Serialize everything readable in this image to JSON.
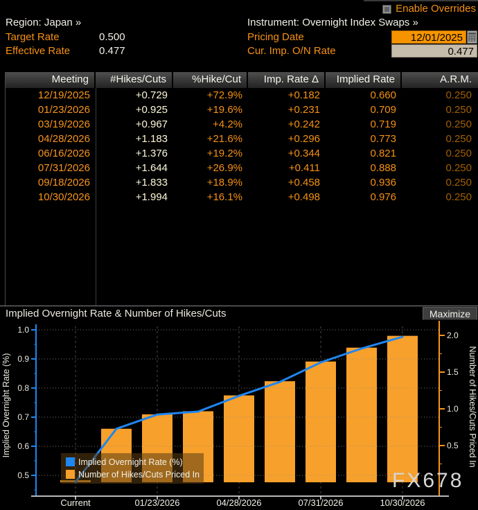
{
  "header": {
    "enable_overrides_label": "Enable Overrides",
    "region_label": "Region:",
    "region_value": "Japan »",
    "instrument_label": "Instrument:",
    "instrument_value": "Overnight Index Swaps »",
    "target_rate_label": "Target Rate",
    "target_rate_value": "0.500",
    "effective_rate_label": "Effective Rate",
    "effective_rate_value": "0.477",
    "pricing_date_label": "Pricing Date",
    "pricing_date_value": "12/01/2025",
    "calendar_icon": "calendar-icon",
    "cur_imp_rate_label": "Cur. Imp. O/N Rate",
    "cur_imp_rate_value": "0.477"
  },
  "table": {
    "columns": [
      "Meeting",
      "#Hikes/Cuts",
      "%Hike/Cut",
      "Imp. Rate Δ",
      "Implied Rate",
      "A.R.M."
    ],
    "rows": [
      [
        "12/19/2025",
        "+0.729",
        "+72.9%",
        "+0.182",
        "0.660",
        "0.250"
      ],
      [
        "01/23/2026",
        "+0.925",
        "+19.6%",
        "+0.231",
        "0.709",
        "0.250"
      ],
      [
        "03/19/2026",
        "+0.967",
        "+4.2%",
        "+0.242",
        "0.719",
        "0.250"
      ],
      [
        "04/28/2026",
        "+1.183",
        "+21.6%",
        "+0.296",
        "0.773",
        "0.250"
      ],
      [
        "06/16/2026",
        "+1.376",
        "+19.2%",
        "+0.344",
        "0.821",
        "0.250"
      ],
      [
        "07/31/2026",
        "+1.644",
        "+26.9%",
        "+0.411",
        "0.888",
        "0.250"
      ],
      [
        "09/18/2026",
        "+1.833",
        "+18.9%",
        "+0.458",
        "0.936",
        "0.250"
      ],
      [
        "10/30/2026",
        "+1.994",
        "+16.1%",
        "+0.498",
        "0.976",
        "0.250"
      ]
    ]
  },
  "chart": {
    "title": "Implied Overnight Rate & Number of Hikes/Cuts",
    "maximize_label": "Maximize"
  },
  "chart_data": {
    "type": "bar",
    "subtype": "bar+line dual axis",
    "title": "Implied Overnight Rate & Number of Hikes/Cuts",
    "categories": [
      "Current",
      "12/19/2025",
      "01/23/2026",
      "03/19/2026",
      "04/28/2026",
      "06/16/2026",
      "07/31/2026",
      "09/18/2026",
      "10/30/2026"
    ],
    "x_tick_labels": [
      "Current",
      "01/23/2026",
      "04/28/2026",
      "07/31/2026",
      "10/30/2026"
    ],
    "series": [
      {
        "name": "Implied Overnight Rate (%)",
        "type": "line",
        "axis": "left",
        "color": "#2086f0",
        "values": [
          0.477,
          0.66,
          0.709,
          0.719,
          0.773,
          0.821,
          0.888,
          0.936,
          0.976
        ]
      },
      {
        "name": "Number of Hikes/Cuts Priced In",
        "type": "bar",
        "axis": "right",
        "color": "#f7a02b",
        "values": [
          0,
          0.729,
          0.925,
          0.967,
          1.183,
          1.376,
          1.644,
          1.833,
          1.994
        ]
      }
    ],
    "left_axis": {
      "label": "Implied Overnight Rate (%)",
      "ticks": [
        1.0,
        0.9,
        0.8,
        0.7,
        0.6,
        0.5
      ],
      "minor_step": 0.05,
      "color": "#2086f0",
      "range": [
        0.43,
        1.01
      ]
    },
    "right_axis": {
      "label": "Number of Hikes/Cuts Priced In",
      "ticks": [
        2.0,
        1.5,
        1.0,
        0.5
      ],
      "minor_step": 0.25,
      "color": "#f7941d",
      "range": [
        0,
        2.12
      ]
    },
    "grid": true,
    "legend_position": "bottom-left",
    "watermark": "FX678"
  }
}
